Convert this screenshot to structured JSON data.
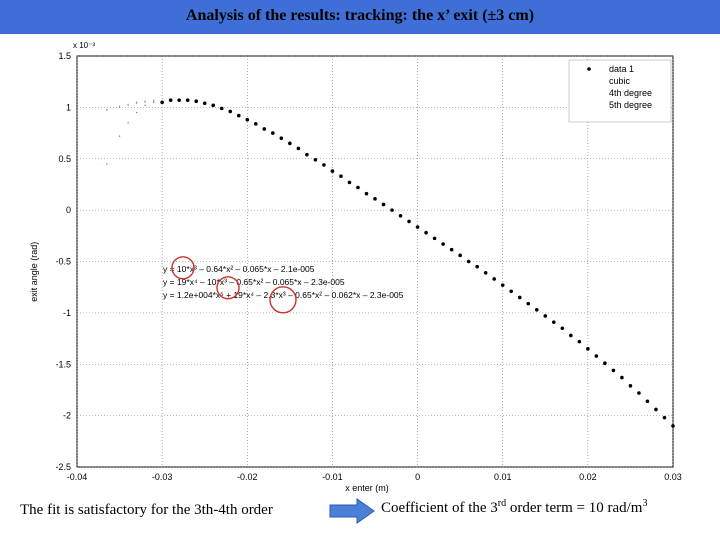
{
  "title": "Analysis of the results: tracking: the x’ exit (±3 cm)",
  "chart_data": {
    "type": "scatter",
    "x_scale_label": "x 10⁻³",
    "xlabel": "x enter (m)",
    "ylabel": "exit angle (rad)",
    "y_scale_label": "x 10⁻³",
    "xlim": [
      -0.04,
      0.03
    ],
    "ylim": [
      -2.5,
      1.5
    ],
    "xticks": [
      "-0.04",
      "-0.03",
      "-0.02",
      "-0.01",
      "0",
      "0.01",
      "0.02",
      "0.03"
    ],
    "yticks": [
      "1.5",
      "1",
      "0.5",
      "0",
      "-0.5",
      "-1",
      "-1.5",
      "-2",
      "-2.5"
    ],
    "grid": true,
    "legend_position": "top-right",
    "series": [
      {
        "name": "data 1",
        "marker": "dot",
        "color": "#000000",
        "x": [
          -0.03,
          -0.029,
          -0.028,
          -0.027,
          -0.026,
          -0.025,
          -0.024,
          -0.023,
          -0.022,
          -0.021,
          -0.02,
          -0.019,
          -0.018,
          -0.017,
          -0.016,
          -0.015,
          -0.014,
          -0.013,
          -0.012,
          -0.011,
          -0.01,
          -0.009,
          -0.008,
          -0.007,
          -0.006,
          -0.005,
          -0.004,
          -0.003,
          -0.002,
          -0.001,
          0.0,
          0.001,
          0.002,
          0.003,
          0.004,
          0.005,
          0.006,
          0.007,
          0.008,
          0.009,
          0.01,
          0.011,
          0.012,
          0.013,
          0.014,
          0.015,
          0.016,
          0.017,
          0.018,
          0.019,
          0.02,
          0.021,
          0.022,
          0.023,
          0.024,
          0.025,
          0.026,
          0.027,
          0.028,
          0.029,
          0.03
        ],
        "y": [
          1.05,
          1.07,
          1.07,
          1.07,
          1.06,
          1.04,
          1.02,
          0.99,
          0.96,
          0.92,
          0.88,
          0.84,
          0.79,
          0.75,
          0.7,
          0.65,
          0.6,
          0.54,
          0.49,
          0.44,
          0.38,
          0.33,
          0.27,
          0.22,
          0.16,
          0.11,
          0.055,
          0.0,
          -0.055,
          -0.11,
          -0.165,
          -0.22,
          -0.275,
          -0.33,
          -0.385,
          -0.44,
          -0.5,
          -0.55,
          -0.61,
          -0.67,
          -0.73,
          -0.79,
          -0.85,
          -0.91,
          -0.97,
          -1.03,
          -1.09,
          -1.15,
          -1.22,
          -1.28,
          -1.35,
          -1.42,
          -1.49,
          -1.56,
          -1.63,
          -1.71,
          -1.78,
          -1.86,
          -1.94,
          -2.02,
          -2.1
        ]
      },
      {
        "name": "cubic",
        "marker": "fit-line",
        "color": "#d45050",
        "x": [
          -0.0365,
          -0.035,
          -0.034,
          -0.033,
          -0.032,
          -0.031
        ],
        "y": [
          0.45,
          0.72,
          0.85,
          0.95,
          1.02,
          1.05
        ]
      },
      {
        "name": "4th degree",
        "marker": "fit-line",
        "color": "#e08080",
        "x": [
          -0.0365,
          -0.035,
          -0.034,
          -0.033,
          -0.032,
          -0.031
        ],
        "y": [
          0.97,
          1.0,
          1.02,
          1.04,
          1.05,
          1.06
        ]
      },
      {
        "name": "5th degree",
        "marker": "fit-line",
        "color": "#9090c0",
        "x": [
          -0.0365,
          -0.035,
          -0.034,
          -0.033,
          -0.032,
          -0.031
        ],
        "y": [
          0.98,
          1.01,
          1.03,
          1.05,
          1.06,
          1.07
        ]
      }
    ],
    "annotations": [
      "y = 10*x³ – 0.64*x² – 0.065*x – 2.1e-005",
      "y = 19*x⁴ – 10*x³ – 0.65*x² – 0.065*x – 2.3e-005",
      "y = 1.2e+004*x⁵ + 19*x⁴ – 2.3*x³ – 0.65*x² – 0.062*x – 2.3e-005"
    ],
    "highlight_color": "#d03030"
  },
  "footer": {
    "left_text": "The fit is satisfactory for the 3th-4th order",
    "right_prefix": "Coefficient of the 3",
    "right_sup1": "rd",
    "right_middle": " order term = 10 rad/m",
    "right_sup2": "3"
  },
  "arrow_color": "#4a80d8"
}
